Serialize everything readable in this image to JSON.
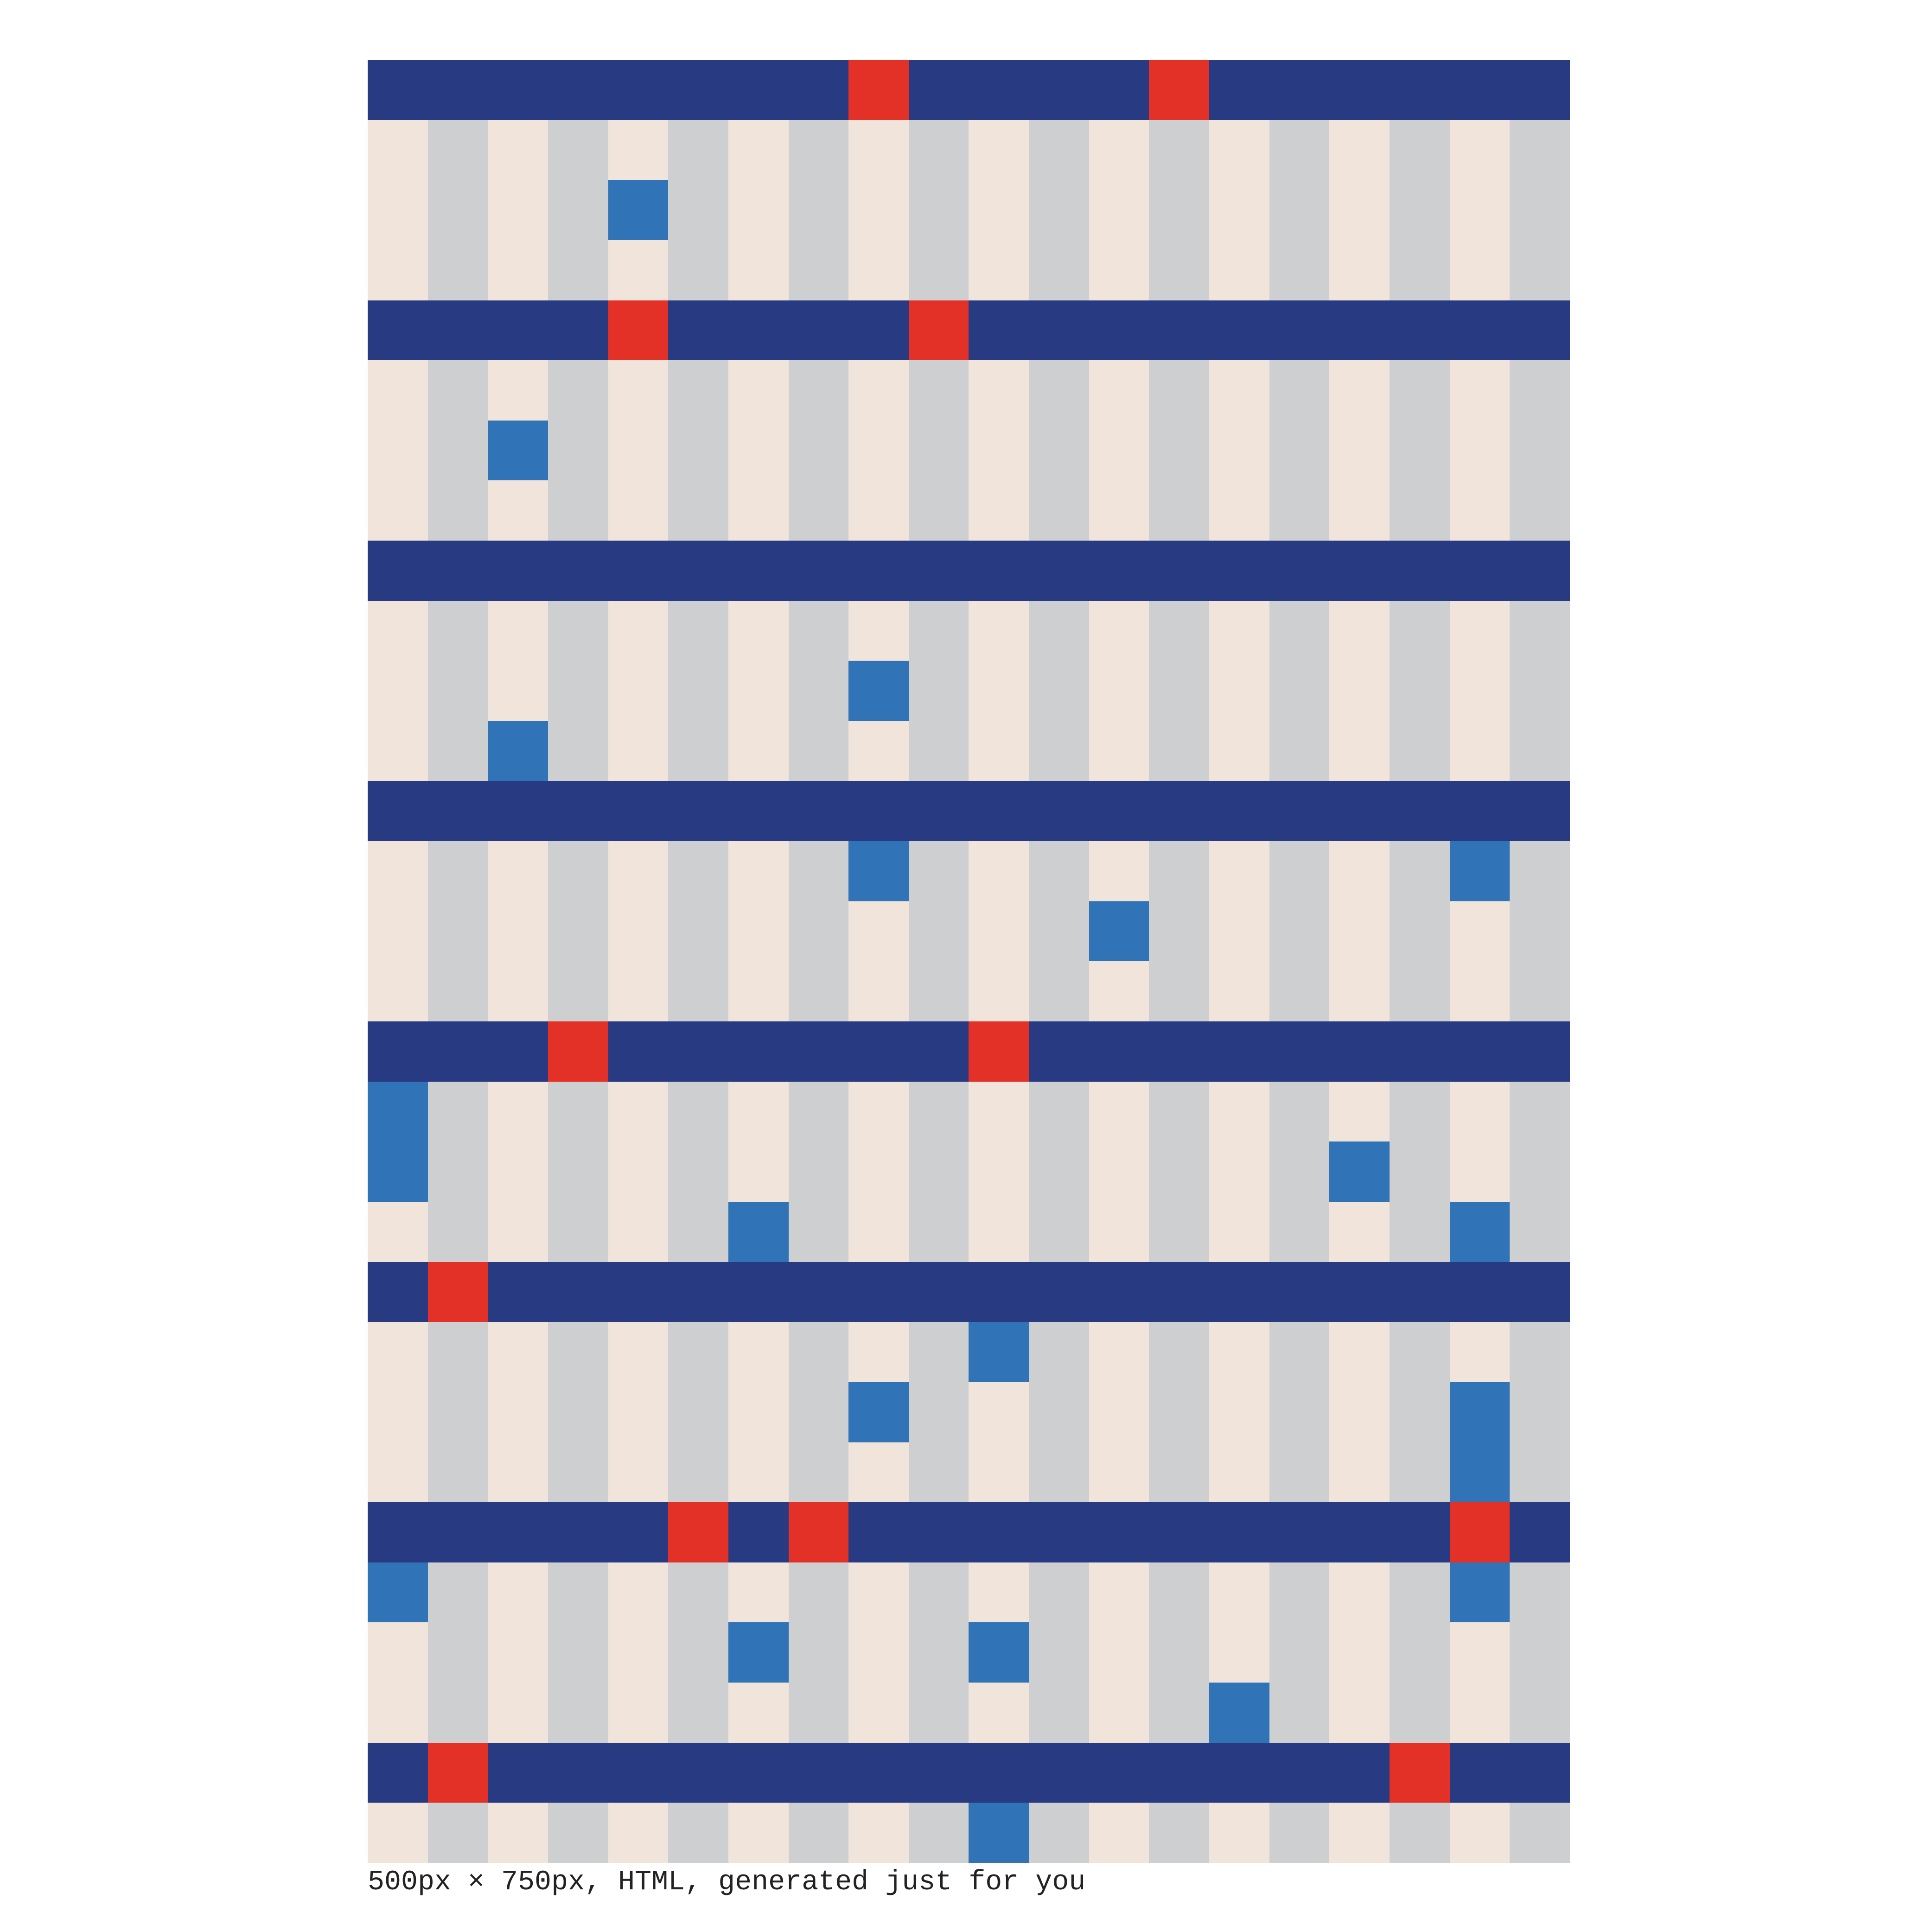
{
  "colors": {
    "background": "#ffffff",
    "stripe_light": "#f0e4db",
    "stripe_grey": "#cdcfd1",
    "band_navy": "#283a82",
    "accent_red": "#e43128",
    "accent_blue": "#3073b6"
  },
  "grid": {
    "columns": 20,
    "rows": 30,
    "band_rows": [
      0,
      4,
      8,
      12,
      16,
      20,
      24,
      28
    ],
    "red_cells": [
      [
        0,
        8
      ],
      [
        0,
        13
      ],
      [
        4,
        4
      ],
      [
        4,
        9
      ],
      [
        16,
        3
      ],
      [
        16,
        10
      ],
      [
        20,
        1
      ],
      [
        24,
        5
      ],
      [
        24,
        7
      ],
      [
        24,
        18
      ],
      [
        28,
        1
      ],
      [
        28,
        17
      ]
    ],
    "blue_cells": [
      [
        2,
        4
      ],
      [
        6,
        2
      ],
      [
        10,
        8
      ],
      [
        11,
        2
      ],
      [
        13,
        8
      ],
      [
        13,
        18
      ],
      [
        14,
        12
      ],
      [
        17,
        0
      ],
      [
        18,
        0
      ],
      [
        18,
        16
      ],
      [
        19,
        6
      ],
      [
        19,
        18
      ],
      [
        21,
        10
      ],
      [
        22,
        8
      ],
      [
        22,
        18
      ],
      [
        23,
        18
      ],
      [
        25,
        0
      ],
      [
        25,
        18
      ],
      [
        26,
        6
      ],
      [
        26,
        10
      ],
      [
        27,
        14
      ],
      [
        29,
        10
      ]
    ]
  },
  "caption": "500px × 750px, HTML, generated just for you"
}
